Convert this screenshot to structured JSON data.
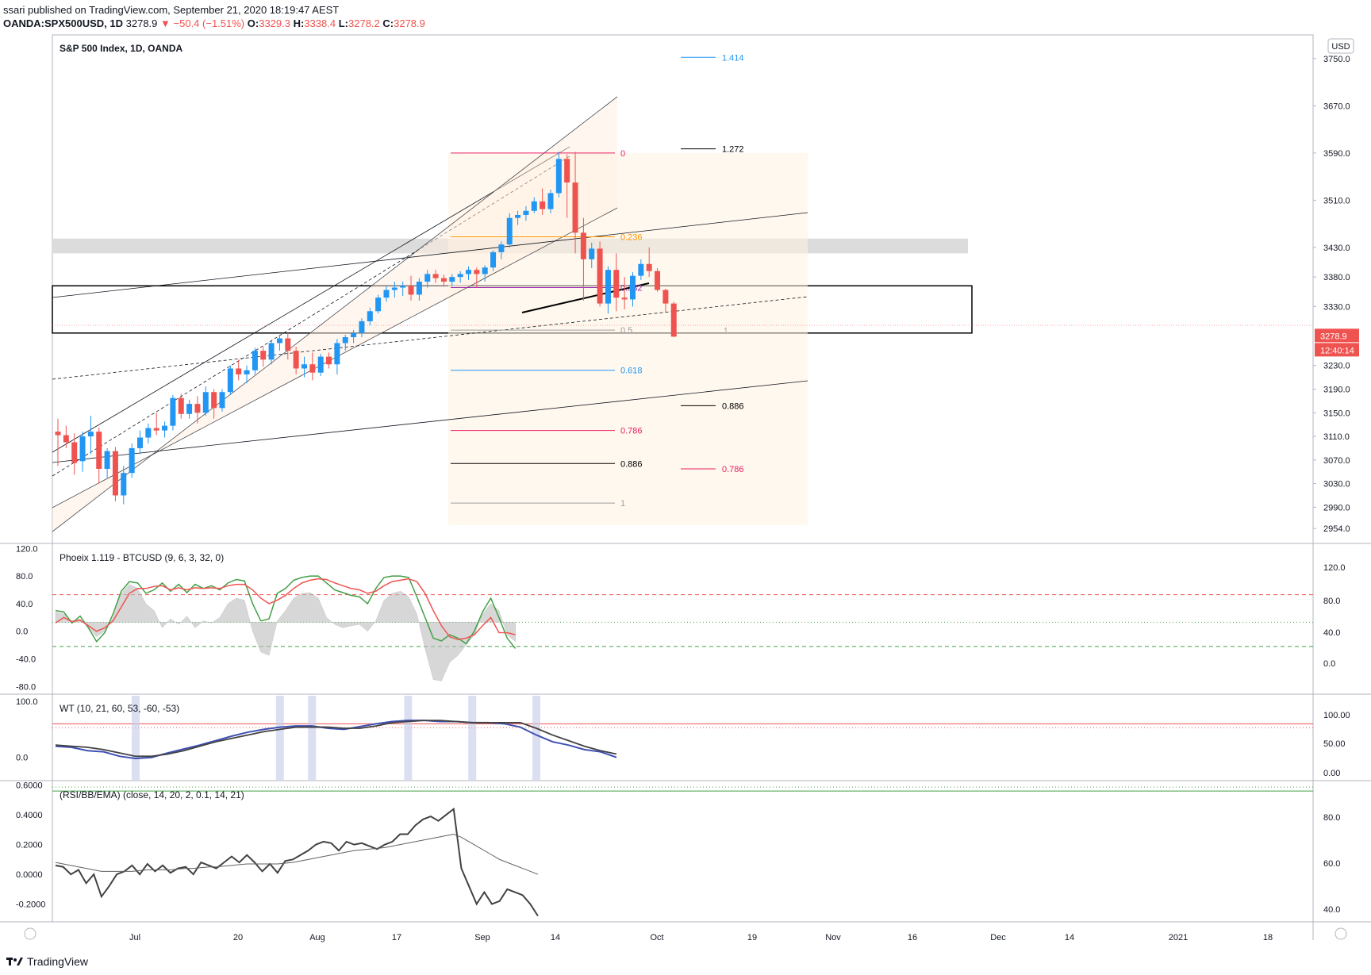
{
  "header": {
    "published": "ssari published on TradingView.com, September 21, 2020 18:19:47 AEST",
    "symbol": "OANDA:SPX500USD, 1D",
    "last": "3278.9",
    "change": "−50.4 (−1.51%)",
    "o_label": "O:",
    "o": "3329.3",
    "h_label": "H:",
    "h": "3338.4",
    "l_label": "L:",
    "l": "3278.2",
    "c_label": "C:",
    "c": "3278.9"
  },
  "brand": "TradingView",
  "colors": {
    "up": "#2196f3",
    "down": "#ef5350",
    "fib_pink": "#e91e63",
    "fib_orange": "#ff9800",
    "fib_purple": "#9c27b0",
    "fib_blue": "#2196f3"
  },
  "chart_data": [
    {
      "type": "candlestick",
      "title": "S&P 500 Index, 1D, OANDA",
      "currency": "USD",
      "ylim": [
        2930,
        3790
      ],
      "y_ticks": [
        "3750.0",
        "3670.0",
        "3590.0",
        "3510.0",
        "3430.0",
        "3380.0",
        "3330.0",
        "3230.0",
        "3190.0",
        "3150.0",
        "3110.0",
        "3070.0",
        "3030.0",
        "2990.0",
        "2954.0"
      ],
      "price_label": "3278.9",
      "countdown": "12:40:14",
      "candles": [
        {
          "o": 3118,
          "h": 3140,
          "l": 3060,
          "c": 3112
        },
        {
          "o": 3112,
          "h": 3128,
          "l": 3090,
          "c": 3100
        },
        {
          "o": 3100,
          "h": 3115,
          "l": 3045,
          "c": 3065
        },
        {
          "o": 3068,
          "h": 3118,
          "l": 3050,
          "c": 3110
        },
        {
          "o": 3110,
          "h": 3145,
          "l": 3080,
          "c": 3118
        },
        {
          "o": 3118,
          "h": 3125,
          "l": 3030,
          "c": 3055
        },
        {
          "o": 3055,
          "h": 3090,
          "l": 3040,
          "c": 3085
        },
        {
          "o": 3085,
          "h": 3092,
          "l": 3000,
          "c": 3010
        },
        {
          "o": 3010,
          "h": 3060,
          "l": 2995,
          "c": 3048
        },
        {
          "o": 3048,
          "h": 3098,
          "l": 3040,
          "c": 3090
        },
        {
          "o": 3090,
          "h": 3120,
          "l": 3080,
          "c": 3108
        },
        {
          "o": 3108,
          "h": 3132,
          "l": 3098,
          "c": 3124
        },
        {
          "o": 3124,
          "h": 3150,
          "l": 3112,
          "c": 3120
        },
        {
          "o": 3120,
          "h": 3135,
          "l": 3108,
          "c": 3128
        },
        {
          "o": 3128,
          "h": 3180,
          "l": 3120,
          "c": 3175
        },
        {
          "o": 3175,
          "h": 3182,
          "l": 3140,
          "c": 3148
        },
        {
          "o": 3148,
          "h": 3172,
          "l": 3140,
          "c": 3165
        },
        {
          "o": 3165,
          "h": 3178,
          "l": 3132,
          "c": 3150
        },
        {
          "o": 3150,
          "h": 3195,
          "l": 3145,
          "c": 3185
        },
        {
          "o": 3185,
          "h": 3190,
          "l": 3140,
          "c": 3158
        },
        {
          "o": 3158,
          "h": 3190,
          "l": 3152,
          "c": 3185
        },
        {
          "o": 3185,
          "h": 3230,
          "l": 3180,
          "c": 3225
        },
        {
          "o": 3225,
          "h": 3240,
          "l": 3205,
          "c": 3215
        },
        {
          "o": 3215,
          "h": 3230,
          "l": 3200,
          "c": 3222
        },
        {
          "o": 3222,
          "h": 3260,
          "l": 3215,
          "c": 3255
        },
        {
          "o": 3255,
          "h": 3262,
          "l": 3228,
          "c": 3240
        },
        {
          "o": 3240,
          "h": 3272,
          "l": 3232,
          "c": 3268
        },
        {
          "o": 3268,
          "h": 3282,
          "l": 3255,
          "c": 3276
        },
        {
          "o": 3276,
          "h": 3285,
          "l": 3240,
          "c": 3255
        },
        {
          "o": 3255,
          "h": 3262,
          "l": 3215,
          "c": 3225
        },
        {
          "o": 3225,
          "h": 3245,
          "l": 3210,
          "c": 3232
        },
        {
          "o": 3232,
          "h": 3252,
          "l": 3205,
          "c": 3218
        },
        {
          "o": 3218,
          "h": 3250,
          "l": 3212,
          "c": 3245
        },
        {
          "o": 3245,
          "h": 3252,
          "l": 3225,
          "c": 3232
        },
        {
          "o": 3232,
          "h": 3275,
          "l": 3215,
          "c": 3268
        },
        {
          "o": 3268,
          "h": 3282,
          "l": 3255,
          "c": 3278
        },
        {
          "o": 3278,
          "h": 3290,
          "l": 3268,
          "c": 3285
        },
        {
          "o": 3285,
          "h": 3310,
          "l": 3278,
          "c": 3305
        },
        {
          "o": 3305,
          "h": 3328,
          "l": 3298,
          "c": 3322
        },
        {
          "o": 3322,
          "h": 3350,
          "l": 3318,
          "c": 3345
        },
        {
          "o": 3345,
          "h": 3365,
          "l": 3338,
          "c": 3358
        },
        {
          "o": 3358,
          "h": 3372,
          "l": 3345,
          "c": 3362
        },
        {
          "o": 3362,
          "h": 3372,
          "l": 3348,
          "c": 3365
        },
        {
          "o": 3365,
          "h": 3382,
          "l": 3340,
          "c": 3350
        },
        {
          "o": 3350,
          "h": 3378,
          "l": 3340,
          "c": 3372
        },
        {
          "o": 3372,
          "h": 3392,
          "l": 3362,
          "c": 3385
        },
        {
          "o": 3385,
          "h": 3392,
          "l": 3370,
          "c": 3378
        },
        {
          "o": 3378,
          "h": 3384,
          "l": 3365,
          "c": 3372
        },
        {
          "o": 3372,
          "h": 3385,
          "l": 3365,
          "c": 3380
        },
        {
          "o": 3380,
          "h": 3390,
          "l": 3370,
          "c": 3385
        },
        {
          "o": 3385,
          "h": 3398,
          "l": 3375,
          "c": 3392
        },
        {
          "o": 3392,
          "h": 3396,
          "l": 3362,
          "c": 3385
        },
        {
          "o": 3385,
          "h": 3400,
          "l": 3372,
          "c": 3396
        },
        {
          "o": 3396,
          "h": 3425,
          "l": 3390,
          "c": 3422
        },
        {
          "o": 3422,
          "h": 3440,
          "l": 3410,
          "c": 3435
        },
        {
          "o": 3435,
          "h": 3488,
          "l": 3430,
          "c": 3480
        },
        {
          "o": 3480,
          "h": 3492,
          "l": 3468,
          "c": 3485
        },
        {
          "o": 3485,
          "h": 3500,
          "l": 3475,
          "c": 3492
        },
        {
          "o": 3492,
          "h": 3515,
          "l": 3488,
          "c": 3508
        },
        {
          "o": 3508,
          "h": 3530,
          "l": 3485,
          "c": 3495
        },
        {
          "o": 3495,
          "h": 3528,
          "l": 3488,
          "c": 3522
        },
        {
          "o": 3522,
          "h": 3592,
          "l": 3515,
          "c": 3580
        },
        {
          "o": 3580,
          "h": 3588,
          "l": 3480,
          "c": 3540
        },
        {
          "o": 3540,
          "h": 3592,
          "l": 3420,
          "c": 3455
        },
        {
          "o": 3455,
          "h": 3480,
          "l": 3340,
          "c": 3410
        },
        {
          "o": 3410,
          "h": 3438,
          "l": 3395,
          "c": 3428
        },
        {
          "o": 3428,
          "h": 3440,
          "l": 3330,
          "c": 3335
        },
        {
          "o": 3335,
          "h": 3398,
          "l": 3318,
          "c": 3392
        },
        {
          "o": 3392,
          "h": 3420,
          "l": 3322,
          "c": 3345
        },
        {
          "o": 3345,
          "h": 3380,
          "l": 3325,
          "c": 3342
        },
        {
          "o": 3342,
          "h": 3388,
          "l": 3330,
          "c": 3382
        },
        {
          "o": 3382,
          "h": 3410,
          "l": 3375,
          "c": 3402
        },
        {
          "o": 3402,
          "h": 3430,
          "l": 3380,
          "c": 3390
        },
        {
          "o": 3390,
          "h": 3395,
          "l": 3355,
          "c": 3358
        },
        {
          "o": 3358,
          "h": 3360,
          "l": 3320,
          "c": 3335
        },
        {
          "o": 3335,
          "h": 3338,
          "l": 3278,
          "c": 3279
        }
      ],
      "fib_levels": [
        {
          "label": "0",
          "value": 3590,
          "color": "#e91e63"
        },
        {
          "label": "0.236",
          "value": 3448,
          "color": "#ff9800"
        },
        {
          "label": "0.382",
          "value": 3362,
          "color": "#9c27b0"
        },
        {
          "label": "0.5",
          "value": 3290,
          "color": "#9e9e9e"
        },
        {
          "label": "0.618",
          "value": 3222,
          "color": "#2196f3"
        },
        {
          "label": "0.786",
          "value": 3120,
          "color": "#e91e63"
        },
        {
          "label": "0.886",
          "value": 3064,
          "color": "#000000"
        },
        {
          "label": "1",
          "value": 2997,
          "color": "#9e9e9e"
        }
      ],
      "ext_levels": [
        {
          "label": "1.414",
          "value": 3752,
          "color": "#2196f3"
        },
        {
          "label": "1.272",
          "value": 3597,
          "color": "#000000"
        },
        {
          "label": "0.886",
          "value": 3162,
          "color": "#000000"
        },
        {
          "label": "0.786",
          "value": 3055,
          "color": "#e91e63"
        }
      ],
      "ext_extra_label": "1"
    },
    {
      "type": "line",
      "title": "Phoeix 1.119 - BTCUSD (9, 6, 3, 32, 0)",
      "left_ticks": [
        "120.0",
        "80.0",
        "40.0",
        "0.0",
        "-40.0",
        "-80.0"
      ],
      "right_ticks": [
        "120.0",
        "80.0",
        "40.0",
        "0.0"
      ],
      "ylim": [
        -90,
        125
      ],
      "series": [
        {
          "values": [
            30,
            28,
            12,
            22,
            5,
            -15,
            -2,
            25,
            58,
            72,
            70,
            55,
            60,
            70,
            58,
            68,
            56,
            68,
            62,
            66,
            60,
            70,
            75,
            73,
            40,
            15,
            18,
            55,
            62,
            74,
            78,
            80,
            80,
            70,
            60,
            56,
            52,
            50,
            40,
            62,
            78,
            80,
            80,
            78,
            50,
            20,
            -10,
            -14,
            -5,
            -10,
            -18,
            0,
            28,
            48,
            20,
            -10,
            -25
          ]
        },
        {
          "values": [
            12,
            20,
            14,
            16,
            8,
            0,
            5,
            15,
            35,
            55,
            62,
            62,
            65,
            66,
            60,
            63,
            60,
            63,
            62,
            63,
            62,
            66,
            68,
            68,
            60,
            48,
            40,
            45,
            52,
            62,
            70,
            74,
            76,
            75,
            70,
            66,
            62,
            60,
            55,
            58,
            66,
            72,
            74,
            76,
            72,
            55,
            30,
            8,
            -8,
            -12,
            -10,
            -5,
            8,
            20,
            -2,
            -2,
            -5
          ]
        }
      ],
      "histogram": [
        28,
        25,
        15,
        18,
        5,
        -8,
        0,
        20,
        55,
        68,
        62,
        40,
        30,
        5,
        18,
        10,
        22,
        5,
        15,
        12,
        20,
        40,
        48,
        45,
        0,
        -30,
        -35,
        15,
        30,
        48,
        55,
        56,
        48,
        20,
        10,
        5,
        8,
        10,
        0,
        15,
        45,
        55,
        58,
        50,
        25,
        -25,
        -70,
        -72,
        -45,
        -35,
        -20,
        -5,
        25,
        40,
        30,
        -5,
        -15
      ],
      "levels": [
        {
          "value": 53,
          "color": "#ef5350",
          "style": "dashed"
        },
        {
          "value": 13,
          "color": "#4caf50",
          "style": "dotted"
        },
        {
          "value": -22,
          "color": "#43a047",
          "style": "dashed"
        }
      ]
    },
    {
      "type": "line",
      "title": "WT (10, 21, 60, 53, -60, -53)",
      "left_ticks": [
        "100.0",
        "0.0"
      ],
      "right_ticks": [
        "100.00",
        "50.00",
        "0.00"
      ],
      "ylim": [
        -40,
        110
      ],
      "series": [
        {
          "values": [
            20,
            18,
            12,
            10,
            2,
            -2,
            0,
            8,
            15,
            22,
            30,
            38,
            45,
            50,
            54,
            56,
            56,
            52,
            50,
            55,
            60,
            64,
            66,
            66,
            64,
            64,
            62,
            62,
            60,
            54,
            40,
            28,
            22,
            14,
            10,
            0
          ]
        },
        {
          "values": [
            22,
            20,
            18,
            14,
            8,
            2,
            2,
            6,
            12,
            20,
            28,
            34,
            40,
            46,
            50,
            54,
            54,
            54,
            52,
            52,
            56,
            62,
            64,
            66,
            66,
            64,
            62,
            62,
            62,
            62,
            52,
            40,
            30,
            20,
            12,
            6
          ]
        }
      ],
      "levels": [
        {
          "value": 60,
          "color": "#ef5350",
          "style": "solid"
        },
        {
          "value": 53,
          "color": "#ef5350",
          "style": "dotted"
        },
        {
          "value": -53,
          "color": "#43a047",
          "style": "dotted"
        },
        {
          "value": -60,
          "color": "#43a047",
          "style": "solid"
        }
      ],
      "highlight_index": [
        5,
        14,
        16,
        22,
        26,
        30
      ]
    },
    {
      "type": "line",
      "title": "(RSI/BB/EMA) (close, 14, 20, 2, 0.1, 14, 21)",
      "left_ticks": [
        "0.6000",
        "0.4000",
        "0.2000",
        "0.0000",
        "-0.2000"
      ],
      "right_ticks": [
        "80.0",
        "60.0",
        "40.0"
      ],
      "ylim": [
        -0.32,
        0.62
      ],
      "series": [
        {
          "values": [
            0.06,
            0.05,
            0.0,
            0.03,
            -0.06,
            0.0,
            -0.15,
            -0.08,
            0.0,
            0.02,
            0.06,
            0.0,
            0.07,
            0.02,
            0.06,
            0.01,
            0.04,
            0.05,
            0.0,
            0.08,
            0.06,
            0.04,
            0.08,
            0.12,
            0.08,
            0.13,
            0.08,
            0.02,
            0.07,
            0.01,
            0.09,
            0.1,
            0.13,
            0.16,
            0.2,
            0.22,
            0.21,
            0.16,
            0.22,
            0.2,
            0.21,
            0.19,
            0.17,
            0.2,
            0.22,
            0.27,
            0.27,
            0.33,
            0.37,
            0.39,
            0.36,
            0.4,
            0.44,
            0.04,
            -0.08,
            -0.2,
            -0.12,
            -0.2,
            -0.18,
            -0.1,
            -0.12,
            -0.14,
            -0.2,
            -0.28
          ]
        },
        {
          "values": [
            0.08,
            0.07,
            0.06,
            0.05,
            0.04,
            0.03,
            0.02,
            0.02,
            0.02,
            0.02,
            0.02,
            0.025,
            0.03,
            0.03,
            0.03,
            0.03,
            0.035,
            0.04,
            0.04,
            0.045,
            0.05,
            0.05,
            0.055,
            0.06,
            0.065,
            0.07,
            0.07,
            0.07,
            0.07,
            0.07,
            0.075,
            0.08,
            0.09,
            0.1,
            0.11,
            0.12,
            0.13,
            0.14,
            0.15,
            0.16,
            0.165,
            0.17,
            0.175,
            0.18,
            0.19,
            0.2,
            0.21,
            0.22,
            0.23,
            0.24,
            0.25,
            0.26,
            0.27,
            0.25,
            0.22,
            0.19,
            0.16,
            0.13,
            0.1,
            0.08,
            0.06,
            0.04,
            0.02,
            0.0
          ]
        }
      ]
    },
    {
      "type": "axis",
      "x_ticks": [
        "Jul",
        "20",
        "Aug",
        "17",
        "Sep",
        "14",
        "Oct",
        "19",
        "Nov",
        "16",
        "Dec",
        "14",
        "2021",
        "18"
      ]
    }
  ]
}
